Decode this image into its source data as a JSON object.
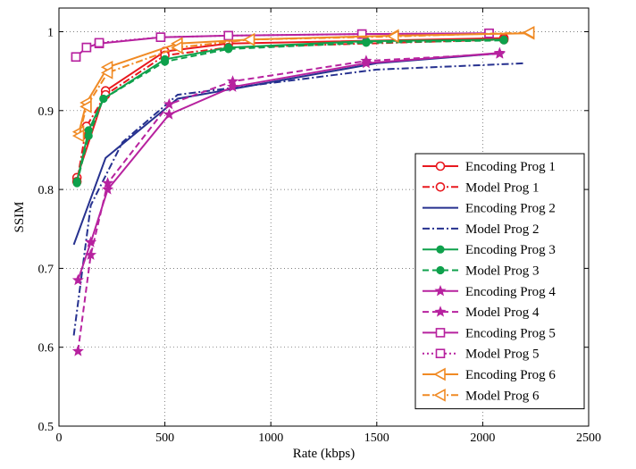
{
  "chart_data": {
    "type": "line",
    "title": "",
    "xlabel": "Rate (kbps)",
    "ylabel": "SSIM",
    "xlim": [
      0,
      2500
    ],
    "ylim": [
      0.5,
      1.03
    ],
    "xticks": [
      0,
      500,
      1000,
      1500,
      2000,
      2500
    ],
    "yticks": [
      0.5,
      0.6,
      0.7,
      0.8,
      0.9,
      1
    ],
    "xtick_labels": [
      "0",
      "500",
      "1000",
      "1500",
      "2000",
      "2500"
    ],
    "ytick_labels": [
      "0.5",
      "0.6",
      "0.7",
      "0.8",
      "0.9",
      "1"
    ],
    "grid": true,
    "legend_position": "right",
    "series": [
      {
        "name": "Encoding Prog 1",
        "color": "#e8191f",
        "dash": "solid",
        "marker": "circle",
        "fill": false,
        "x": [
          85,
          220,
          500,
          800,
          2100
        ],
        "y": [
          0.815,
          0.925,
          0.975,
          0.985,
          0.992
        ]
      },
      {
        "name": "Model Prog 1",
        "color": "#e8191f",
        "dash": "dashdot",
        "marker": "circle",
        "fill": false,
        "x": [
          85,
          130,
          220,
          500,
          800,
          2100
        ],
        "y": [
          0.81,
          0.88,
          0.92,
          0.97,
          0.98,
          0.99
        ]
      },
      {
        "name": "Encoding Prog 2",
        "color": "#26318f",
        "dash": "solid",
        "marker": "none",
        "fill": false,
        "x": [
          70,
          220,
          560,
          1500,
          2100
        ],
        "y": [
          0.73,
          0.84,
          0.915,
          0.96,
          0.973
        ]
      },
      {
        "name": "Model Prog 2",
        "color": "#26318f",
        "dash": "dashdot",
        "marker": "none",
        "fill": false,
        "x": [
          70,
          150,
          300,
          560,
          1500,
          2200
        ],
        "y": [
          0.615,
          0.78,
          0.86,
          0.92,
          0.952,
          0.96
        ]
      },
      {
        "name": "Encoding Prog 3",
        "color": "#0fa14c",
        "dash": "solid",
        "marker": "dot",
        "fill": true,
        "x": [
          85,
          140,
          210,
          500,
          800,
          1450,
          2100
        ],
        "y": [
          0.81,
          0.875,
          0.915,
          0.965,
          0.98,
          0.988,
          0.99
        ]
      },
      {
        "name": "Model Prog 3",
        "color": "#0fa14c",
        "dash": "dashed",
        "marker": "dot",
        "fill": true,
        "x": [
          85,
          140,
          210,
          500,
          800,
          1450,
          2100
        ],
        "y": [
          0.808,
          0.868,
          0.915,
          0.962,
          0.978,
          0.986,
          0.989
        ]
      },
      {
        "name": "Encoding Prog 4",
        "color": "#b7229f",
        "dash": "solid",
        "marker": "star",
        "fill": true,
        "x": [
          90,
          150,
          230,
          520,
          820,
          1450,
          2080
        ],
        "y": [
          0.685,
          0.733,
          0.8,
          0.895,
          0.93,
          0.96,
          0.973
        ]
      },
      {
        "name": "Model Prog 4",
        "color": "#b7229f",
        "dash": "dashed",
        "marker": "star",
        "fill": true,
        "x": [
          90,
          150,
          230,
          520,
          820,
          1450,
          2080
        ],
        "y": [
          0.595,
          0.717,
          0.808,
          0.908,
          0.937,
          0.963,
          0.972
        ]
      },
      {
        "name": "Encoding Prog 5",
        "color": "#b7229f",
        "dash": "solid",
        "marker": "square",
        "fill": false,
        "x": [
          80,
          130,
          190,
          480,
          800,
          1430,
          2030
        ],
        "y": [
          0.968,
          0.98,
          0.985,
          0.993,
          0.995,
          0.997,
          0.998
        ]
      },
      {
        "name": "Model Prog 5",
        "color": "#b7229f",
        "dash": "dotted",
        "marker": "square",
        "fill": false,
        "x": [
          80,
          130,
          190,
          480,
          800,
          1430,
          2030
        ],
        "y": [
          0.968,
          0.98,
          0.986,
          0.993,
          0.995,
          0.997,
          0.998
        ]
      },
      {
        "name": "Encoding Prog 6",
        "color": "#f08a24",
        "dash": "solid",
        "marker": "triangle-left",
        "fill": false,
        "x": [
          95,
          130,
          230,
          560,
          900,
          1580,
          2220
        ],
        "y": [
          0.873,
          0.91,
          0.955,
          0.985,
          0.99,
          0.995,
          0.998
        ]
      },
      {
        "name": "Model Prog 6",
        "color": "#f08a24",
        "dash": "dashdot",
        "marker": "triangle-left",
        "fill": false,
        "x": [
          95,
          130,
          230,
          560,
          900,
          1580,
          2220
        ],
        "y": [
          0.868,
          0.905,
          0.948,
          0.98,
          0.99,
          0.994,
          0.999
        ]
      }
    ]
  }
}
